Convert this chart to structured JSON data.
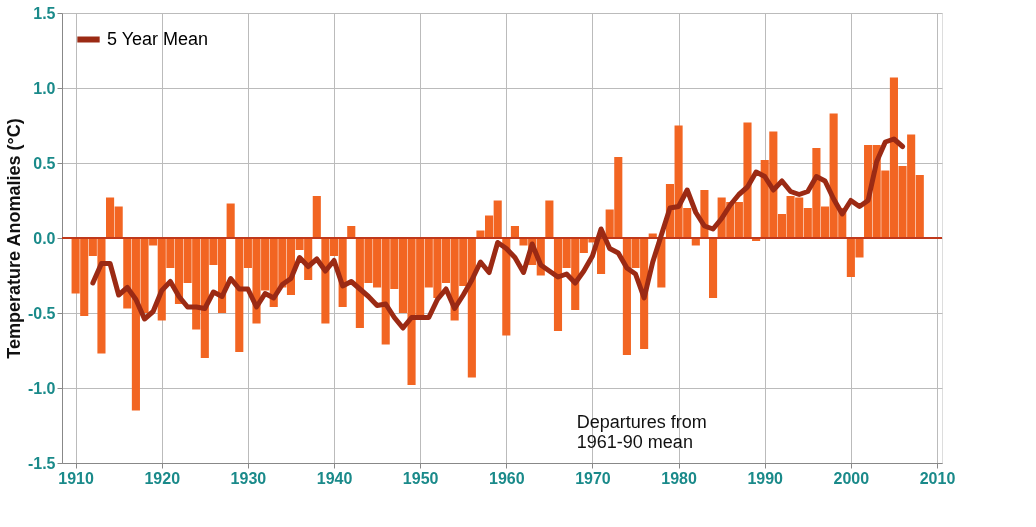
{
  "chart_data": {
    "type": "bar",
    "ylabel": "Temperature Anomalies (°C)",
    "annotations": [
      "Departures from\n1961-90 mean"
    ],
    "x": [
      1910,
      1911,
      1912,
      1913,
      1914,
      1915,
      1916,
      1917,
      1918,
      1919,
      1920,
      1921,
      1922,
      1923,
      1924,
      1925,
      1926,
      1927,
      1928,
      1929,
      1930,
      1931,
      1932,
      1933,
      1934,
      1935,
      1936,
      1937,
      1938,
      1939,
      1940,
      1941,
      1942,
      1943,
      1944,
      1945,
      1946,
      1947,
      1948,
      1949,
      1950,
      1951,
      1952,
      1953,
      1954,
      1955,
      1956,
      1957,
      1958,
      1959,
      1960,
      1961,
      1962,
      1963,
      1964,
      1965,
      1966,
      1967,
      1968,
      1969,
      1970,
      1971,
      1972,
      1973,
      1974,
      1975,
      1976,
      1977,
      1978,
      1979,
      1980,
      1981,
      1982,
      1983,
      1984,
      1985,
      1986,
      1987,
      1988,
      1989,
      1990,
      1991,
      1992,
      1993,
      1994,
      1995,
      1996,
      1997,
      1998,
      1999,
      2000,
      2001,
      2002,
      2003,
      2004,
      2005,
      2006,
      2007,
      2008
    ],
    "series": [
      {
        "color": "#f26522",
        "values": [
          -0.37,
          -0.52,
          -0.12,
          -0.77,
          0.27,
          0.21,
          -0.47,
          -1.15,
          -0.5,
          -0.05,
          -0.55,
          -0.2,
          -0.44,
          -0.3,
          -0.61,
          -0.8,
          -0.18,
          -0.5,
          0.23,
          -0.76,
          -0.2,
          -0.57,
          -0.35,
          -0.46,
          -0.33,
          -0.38,
          -0.08,
          -0.28,
          0.28,
          -0.57,
          -0.12,
          -0.46,
          0.08,
          -0.6,
          -0.3,
          -0.33,
          -0.71,
          -0.34,
          -0.5,
          -0.98,
          -0.53,
          -0.33,
          -0.4,
          -0.3,
          -0.55,
          -0.32,
          -0.93,
          0.05,
          0.15,
          0.25,
          -0.65,
          0.08,
          -0.05,
          -0.18,
          -0.25,
          0.25,
          -0.62,
          -0.2,
          -0.48,
          -0.1,
          -0.03,
          -0.24,
          0.19,
          0.54,
          -0.78,
          -0.2,
          -0.74,
          0.03,
          -0.33,
          0.36,
          0.75,
          0.2,
          -0.05,
          0.32,
          -0.4,
          0.27,
          0.24,
          0.24,
          0.77,
          -0.02,
          0.52,
          0.71,
          0.16,
          0.28,
          0.27,
          0.2,
          0.6,
          0.21,
          0.83,
          0.2,
          -0.26,
          -0.13,
          0.62,
          0.62,
          0.45,
          1.07,
          0.48,
          0.69,
          0.42
        ]
      },
      {
        "type": "line",
        "name": "5 Year Mean",
        "color": "#9b2a14",
        "x": [
          1912,
          1913,
          1914,
          1915,
          1916,
          1917,
          1918,
          1919,
          1920,
          1921,
          1922,
          1923,
          1924,
          1925,
          1926,
          1927,
          1928,
          1929,
          1930,
          1931,
          1932,
          1933,
          1934,
          1935,
          1936,
          1937,
          1938,
          1939,
          1940,
          1941,
          1942,
          1943,
          1944,
          1945,
          1946,
          1947,
          1948,
          1949,
          1950,
          1951,
          1952,
          1953,
          1954,
          1955,
          1956,
          1957,
          1958,
          1959,
          1960,
          1961,
          1962,
          1963,
          1964,
          1965,
          1966,
          1967,
          1968,
          1969,
          1970,
          1971,
          1972,
          1973,
          1974,
          1975,
          1976,
          1977,
          1978,
          1979,
          1980,
          1981,
          1982,
          1983,
          1984,
          1985,
          1986,
          1987,
          1988,
          1989,
          1990,
          1991,
          1992,
          1993,
          1994,
          1995,
          1996,
          1997,
          1998,
          1999,
          2000,
          2001,
          2002,
          2003,
          2004,
          2005,
          2006
        ],
        "values": [
          -0.3,
          -0.17,
          -0.17,
          -0.38,
          -0.33,
          -0.41,
          -0.54,
          -0.49,
          -0.35,
          -0.29,
          -0.39,
          -0.46,
          -0.46,
          -0.47,
          -0.36,
          -0.39,
          -0.27,
          -0.34,
          -0.34,
          -0.46,
          -0.37,
          -0.4,
          -0.31,
          -0.27,
          -0.13,
          -0.19,
          -0.14,
          -0.22,
          -0.15,
          -0.32,
          -0.29,
          -0.34,
          -0.39,
          -0.45,
          -0.44,
          -0.53,
          -0.6,
          -0.53,
          -0.53,
          -0.53,
          -0.41,
          -0.34,
          -0.47,
          -0.38,
          -0.28,
          -0.16,
          -0.23,
          -0.03,
          -0.07,
          -0.13,
          -0.23,
          -0.04,
          -0.18,
          -0.22,
          -0.26,
          -0.24,
          -0.3,
          -0.22,
          -0.12,
          0.06,
          -0.07,
          -0.1,
          -0.2,
          -0.24,
          -0.4,
          -0.16,
          0.02,
          0.2,
          0.21,
          0.32,
          0.17,
          0.08,
          0.06,
          0.13,
          0.22,
          0.29,
          0.34,
          0.44,
          0.41,
          0.32,
          0.38,
          0.31,
          0.29,
          0.31,
          0.41,
          0.38,
          0.26,
          0.16,
          0.25,
          0.21,
          0.25,
          0.51,
          0.64,
          0.66,
          0.61
        ]
      }
    ],
    "xlim": [
      1909,
      2010
    ],
    "xticks": [
      1910,
      1920,
      1930,
      1940,
      1950,
      1960,
      1970,
      1980,
      1990,
      2000,
      2010
    ],
    "ylim": [
      -1.5,
      1.5
    ],
    "yticks": [
      {
        "value": -1.5,
        "label": "-1.5"
      },
      {
        "value": -1,
        "label": "-1.0"
      },
      {
        "value": -0.5,
        "label": "-0.5"
      },
      {
        "value": 0,
        "label": "0.0"
      },
      {
        "value": 0.5,
        "label": "0.5"
      },
      {
        "value": 1,
        "label": "1.0"
      },
      {
        "value": 1.5,
        "label": "1.5"
      }
    ],
    "ref_lines": [
      {
        "axis": "y",
        "value": 0,
        "color": "#c0391b"
      }
    ],
    "grid": true,
    "legend": "top left",
    "line_style": "solid",
    "marker": "none"
  }
}
